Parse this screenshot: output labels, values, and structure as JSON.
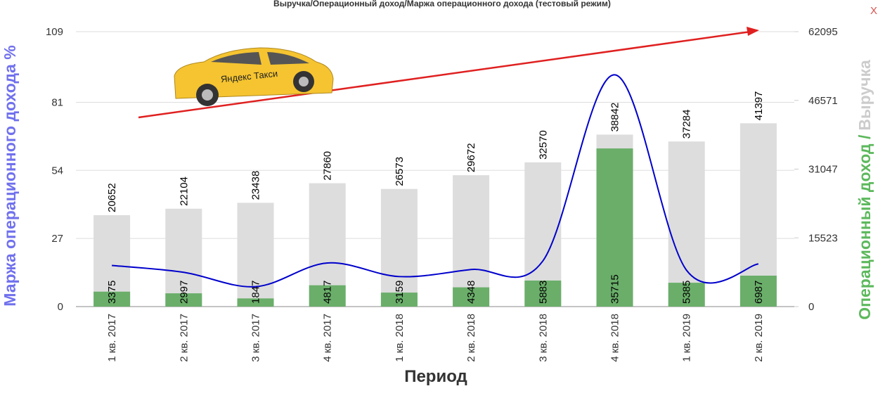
{
  "chart_data": {
    "type": "combo",
    "title": "Выручка/Операционный доход/Маржа операционного дохода (тестовый режим)",
    "close": "X",
    "annotation": "Яндекс Такси",
    "x_label": "Период",
    "y_label": "Маржа операционного дохода %",
    "y2_label_income": "Операционный доход /",
    "y2_label_revenue": "Выручка",
    "categories": [
      "1 кв. 2017",
      "2 кв. 2017",
      "3 кв. 2017",
      "4 кв. 2017",
      "1 кв. 2018",
      "2 кв. 2018",
      "3 кв. 2018",
      "4 кв. 2018",
      "1 кв. 2019",
      "2 кв. 2019"
    ],
    "series": [
      {
        "type": "bar",
        "axis": "y2",
        "color": "#dddddd",
        "label_color": "#000000",
        "values": [
          20652,
          22104,
          23438,
          27860,
          26573,
          29672,
          32570,
          38842,
          37284,
          41397
        ]
      },
      {
        "type": "bar",
        "axis": "y2",
        "color": "#6aae6a",
        "label_color": "#000000",
        "values": [
          3375,
          2997,
          1847,
          4817,
          3159,
          4348,
          5883,
          35715,
          5385,
          6987
        ]
      },
      {
        "type": "line",
        "axis": "y",
        "color": "#0000cc",
        "values": [
          16.3,
          13.6,
          7.9,
          17.3,
          11.9,
          14.7,
          18.1,
          91.9,
          14.4,
          16.9
        ]
      }
    ],
    "ylim": [
      0,
      109
    ],
    "yticks": [
      0,
      27,
      54,
      81,
      109
    ],
    "y2lim": [
      0,
      62095
    ],
    "y2ticks": [
      0,
      15523,
      31047,
      46571,
      62095
    ],
    "grid": true
  }
}
